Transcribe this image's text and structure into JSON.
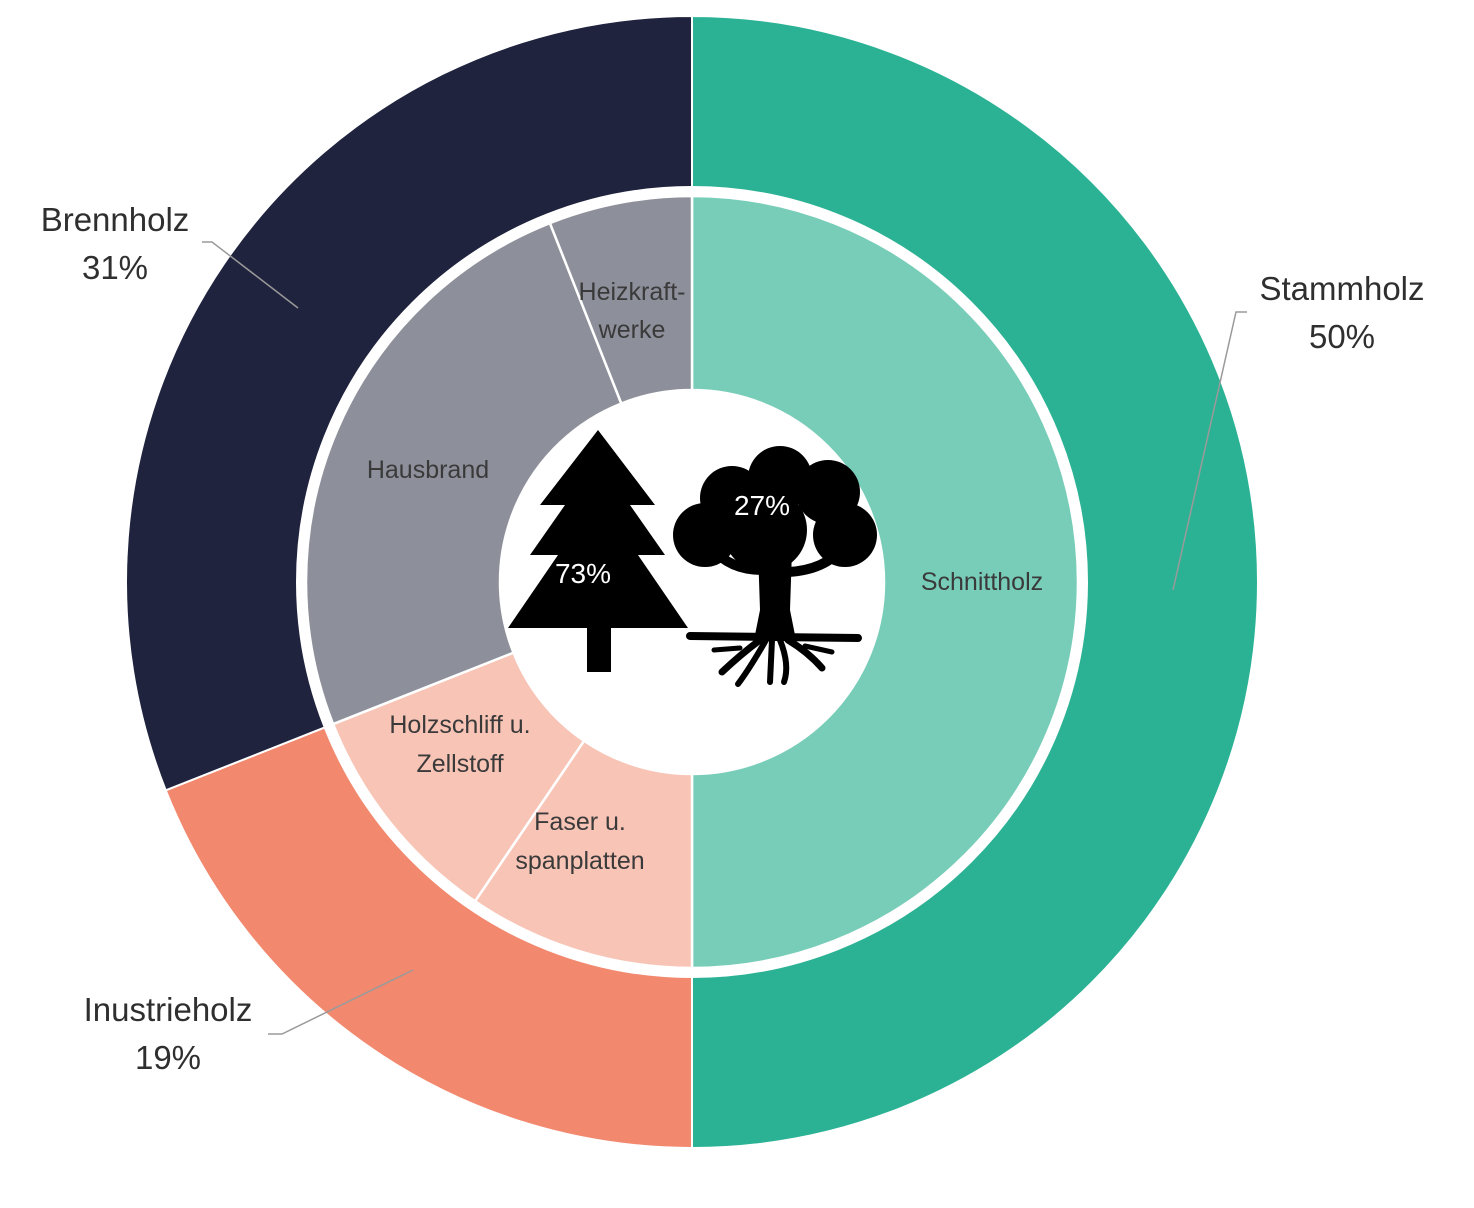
{
  "chart_data": {
    "type": "pie",
    "rings": [
      {
        "name": "",
        "slices": [
          {
            "label": "Stammholz",
            "value": 50,
            "value_label": "50%",
            "color": "#2bb294"
          },
          {
            "label": "Inustrieholz",
            "value": 19,
            "value_label": "19%",
            "color": "#f2896e"
          },
          {
            "label": "Brennholz",
            "value": 31,
            "value_label": "31%",
            "color": "#1f233d"
          }
        ]
      },
      {
        "name": "",
        "slices": [
          {
            "label": "Schnittholz",
            "value": 50,
            "color": "#78cdb9"
          },
          {
            "label": "Faser u. spanplatten",
            "value": 9.5,
            "color": "#f8c4b6"
          },
          {
            "label": "Holzschliff u. Zellstoff",
            "value": 9.5,
            "color": "#f8c4b6"
          },
          {
            "label": "Hausbrand",
            "value": 25,
            "color": "#8d909b"
          },
          {
            "label": "Heizkraft- werke",
            "value": 6,
            "color": "#8d909b"
          }
        ]
      }
    ],
    "center": {
      "conifer_value": "73%",
      "deciduous_value": "27%",
      "conifer_icon": "conifer-tree-icon",
      "deciduous_icon": "deciduous-tree-icon"
    },
    "labels": {
      "stammholz": {
        "name": "Stammholz",
        "pct": "50%"
      },
      "brennholz": {
        "name": "Brennholz",
        "pct": "31%"
      },
      "industrieholz": {
        "name": "Inustrieholz",
        "pct": "19%"
      },
      "schnittholz": "Schnittholz",
      "hausbrand": "Hausbrand",
      "heizkraft_line1": "Heizkraft-",
      "heizkraft_line2": "werke",
      "holzschliff_line1": "Holzschliff u.",
      "holzschliff_line2": "Zellstoff",
      "faser_line1": "Faser u.",
      "faser_line2": "spanplatten"
    }
  }
}
